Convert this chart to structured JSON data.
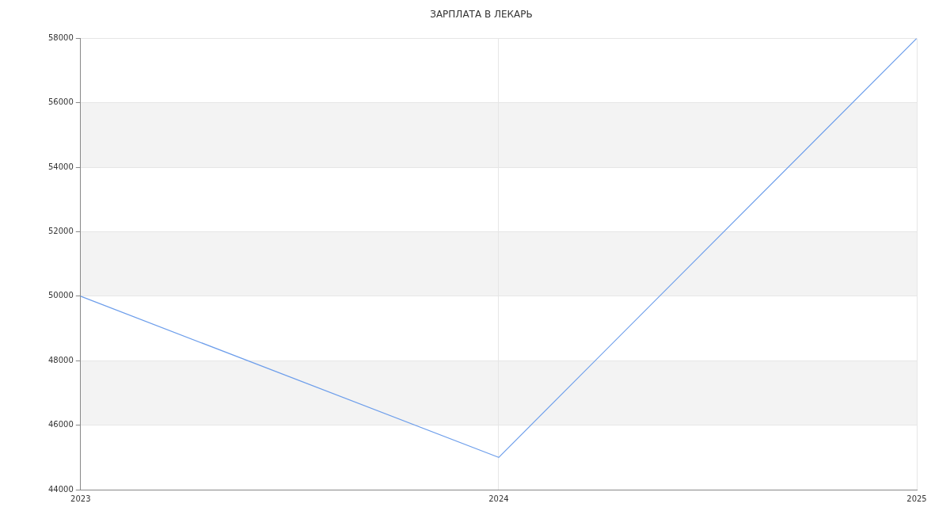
{
  "chart_data": {
    "type": "line",
    "title": "ЗАРПЛАТА В ЛЕКАРЬ",
    "categories": [
      "2023",
      "2024",
      "2025"
    ],
    "series": [
      {
        "color": "#6d9eeb",
        "values": [
          50000,
          45000,
          58000
        ]
      }
    ],
    "ylim": [
      44000,
      58000
    ],
    "yticks": [
      44000,
      46000,
      48000,
      50000,
      52000,
      54000,
      56000,
      58000
    ],
    "grid": true,
    "legend": false,
    "marker": "none",
    "line_style": "solid"
  }
}
